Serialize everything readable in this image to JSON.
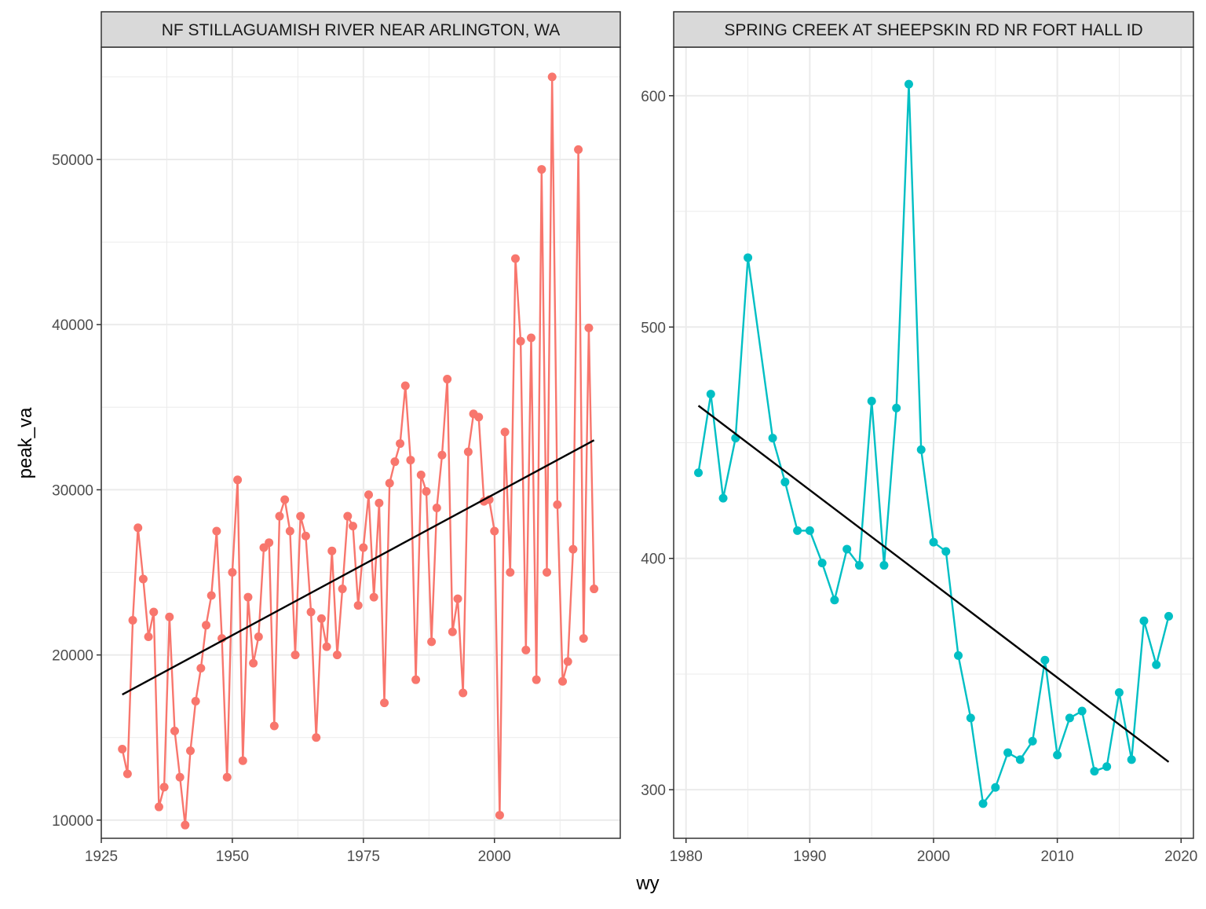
{
  "chart_data": {
    "type": "line",
    "xlabel": "wy",
    "ylabel": "peak_va",
    "panels": [
      {
        "title": "NF STILLAGUAMISH RIVER NEAR ARLINGTON, WA",
        "color": "#F8766D",
        "xlim": [
          1925,
          2024
        ],
        "ylim": [
          8900,
          56800
        ],
        "xticks": [
          1925,
          1950,
          1975,
          2000
        ],
        "yticks": [
          10000,
          20000,
          30000,
          40000,
          50000
        ],
        "x": [
          1929,
          1930,
          1931,
          1932,
          1933,
          1934,
          1935,
          1936,
          1937,
          1938,
          1939,
          1940,
          1941,
          1942,
          1943,
          1944,
          1945,
          1946,
          1947,
          1948,
          1949,
          1950,
          1951,
          1952,
          1953,
          1954,
          1955,
          1956,
          1957,
          1958,
          1959,
          1960,
          1961,
          1962,
          1963,
          1964,
          1965,
          1966,
          1967,
          1968,
          1969,
          1970,
          1971,
          1972,
          1973,
          1974,
          1975,
          1976,
          1977,
          1978,
          1979,
          1980,
          1981,
          1982,
          1983,
          1984,
          1985,
          1986,
          1987,
          1988,
          1989,
          1990,
          1991,
          1992,
          1993,
          1994,
          1995,
          1996,
          1997,
          1998,
          1999,
          2000,
          2001,
          2002,
          2003,
          2004,
          2005,
          2006,
          2007,
          2008,
          2009,
          2010,
          2011,
          2012,
          2013,
          2014,
          2015,
          2016,
          2017,
          2018,
          2019
        ],
        "y": [
          14300,
          12800,
          22100,
          27700,
          24600,
          21100,
          22600,
          10800,
          12000,
          22300,
          15400,
          12600,
          9700,
          14200,
          17200,
          19200,
          21800,
          23600,
          27500,
          21000,
          12600,
          25000,
          30600,
          13600,
          23500,
          19500,
          21100,
          26500,
          26800,
          15700,
          28400,
          29400,
          27500,
          20000,
          28400,
          27200,
          22600,
          15000,
          22200,
          20500,
          26300,
          20000,
          24000,
          28400,
          27800,
          23000,
          26500,
          29700,
          23500,
          29200,
          17100,
          30400,
          31700,
          32800,
          36300,
          31800,
          18500,
          30900,
          29900,
          20800,
          28900,
          32100,
          36700,
          21400,
          23400,
          17700,
          32300,
          34600,
          34400,
          29300,
          29400,
          27500,
          10300,
          33500,
          25000,
          44000,
          39000,
          20300,
          39200,
          18500,
          49400,
          25000,
          55000,
          29100,
          18400,
          19600,
          26400,
          50600,
          21000,
          39800,
          24000
        ],
        "trend": {
          "x": [
            1929,
            2019
          ],
          "y": [
            17600,
            33000
          ]
        }
      },
      {
        "title": "SPRING CREEK AT SHEEPSKIN RD NR FORT HALL ID",
        "color": "#00BFC4",
        "xlim": [
          1979,
          2021
        ],
        "ylim": [
          279,
          621
        ],
        "xticks": [
          1980,
          1990,
          2000,
          2010,
          2020
        ],
        "yticks": [
          300,
          400,
          500,
          600
        ],
        "x": [
          1981,
          1982,
          1983,
          1984,
          1985,
          1987,
          1988,
          1989,
          1990,
          1991,
          1992,
          1993,
          1994,
          1995,
          1996,
          1997,
          1998,
          1999,
          2000,
          2001,
          2002,
          2003,
          2004,
          2005,
          2006,
          2007,
          2008,
          2009,
          2010,
          2011,
          2012,
          2013,
          2014,
          2015,
          2016,
          2017,
          2018,
          2019
        ],
        "y": [
          437,
          471,
          426,
          452,
          530,
          452,
          433,
          412,
          412,
          398,
          382,
          404,
          397,
          468,
          397,
          465,
          605,
          447,
          407,
          403,
          358,
          331,
          294,
          301,
          316,
          313,
          321,
          356,
          315,
          331,
          334,
          308,
          310,
          342,
          313,
          373,
          354,
          375
        ],
        "trend": {
          "x": [
            1981,
            2019
          ],
          "y": [
            466,
            312
          ]
        }
      }
    ]
  }
}
